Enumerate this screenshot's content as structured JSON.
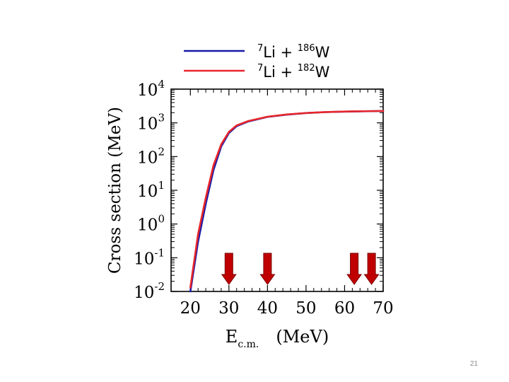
{
  "slide": {
    "page_number": "21"
  },
  "chart_data": {
    "type": "line",
    "title": "",
    "xlabel": {
      "main": "E",
      "sub": "c.m.",
      "unit": "(MeV)"
    },
    "ylabel": "Cross section  (MeV)",
    "x_scale": "linear",
    "y_scale": "log",
    "xlim": [
      15,
      70
    ],
    "ylim": [
      0.01,
      10000
    ],
    "x_ticks": [
      20,
      30,
      40,
      50,
      60,
      70
    ],
    "y_ticks": [
      {
        "value": 0.01,
        "base": "10",
        "exp": "-2"
      },
      {
        "value": 0.1,
        "base": "10",
        "exp": "-1"
      },
      {
        "value": 1,
        "base": "10",
        "exp": "0"
      },
      {
        "value": 10,
        "base": "10",
        "exp": "1"
      },
      {
        "value": 100,
        "base": "10",
        "exp": "2"
      },
      {
        "value": 1000,
        "base": "10",
        "exp": "3"
      },
      {
        "value": 10000,
        "base": "10",
        "exp": "4"
      }
    ],
    "legend_position": "top",
    "series": [
      {
        "name": "7Li + 186W",
        "label": {
          "projectile_mass": "7",
          "projectile": "Li",
          "plus": "+",
          "target_mass": "186",
          "target": "W"
        },
        "color": "#1a1aa8",
        "x": [
          20,
          22,
          24,
          26,
          28,
          30,
          32,
          35,
          40,
          45,
          50,
          55,
          60,
          65,
          70
        ],
        "y": [
          0.01,
          0.3,
          4,
          40,
          200,
          500,
          800,
          1100,
          1500,
          1750,
          1950,
          2080,
          2150,
          2200,
          2250
        ]
      },
      {
        "name": "7Li + 182W",
        "label": {
          "projectile_mass": "7",
          "projectile": "Li",
          "plus": "+",
          "target_mass": "182",
          "target": "W"
        },
        "color": "#e8262b",
        "x": [
          20,
          22,
          24,
          26,
          28,
          30,
          32,
          35,
          40,
          45,
          50,
          55,
          60,
          65,
          70
        ],
        "y": [
          0.013,
          0.5,
          6,
          55,
          230,
          540,
          840,
          1130,
          1520,
          1770,
          1960,
          2090,
          2160,
          2210,
          2250
        ]
      }
    ],
    "annotations": {
      "type": "downward-arrows",
      "color": "#c00000",
      "x_positions": [
        30,
        40,
        62.5,
        67
      ]
    }
  }
}
